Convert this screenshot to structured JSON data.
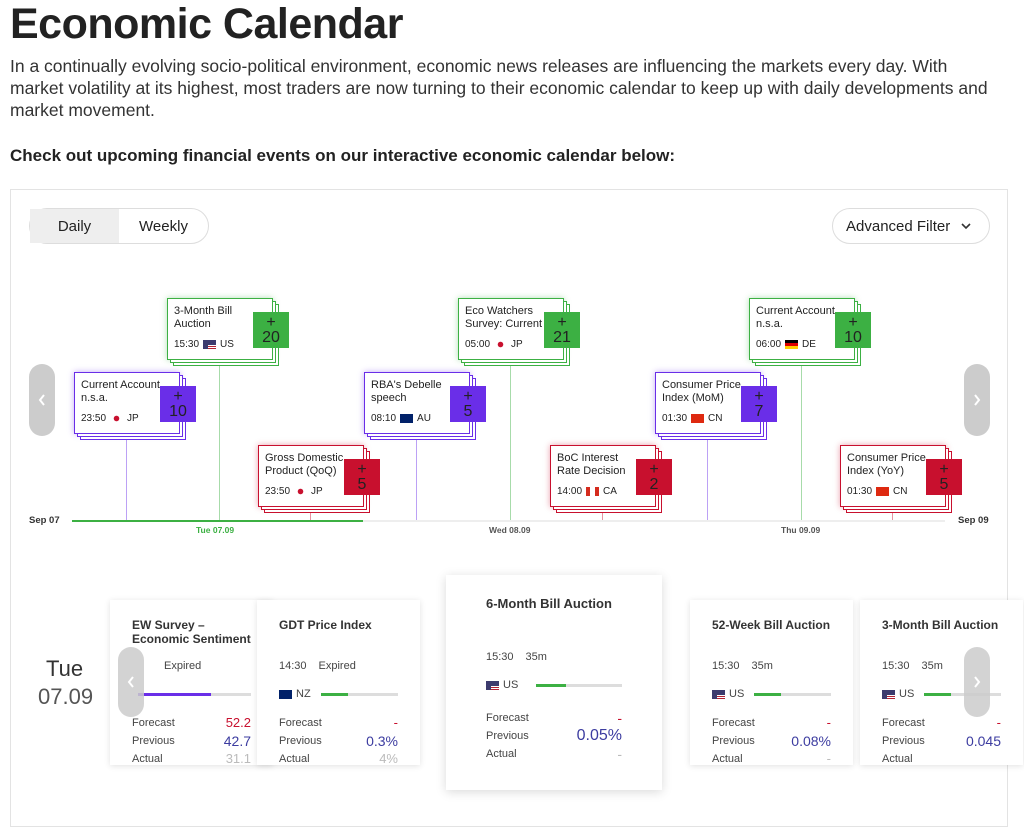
{
  "header": {
    "title": "Economic Calendar",
    "intro": "In a continually evolving socio-political environment, economic news releases are influencing the markets every day. With market volatility at its highest, most traders are now turning to their economic calendar to keep up with daily developments and market movement.",
    "cta": "Check out upcoming financial events on our interactive economic calendar below:"
  },
  "controls": {
    "tabs": [
      "Daily",
      "Weekly"
    ],
    "filter": "Advanced Filter"
  },
  "timeline": {
    "events": [
      {
        "title": "Current Account n.s.a.",
        "time": "23:50",
        "country": "JP",
        "more": "+\n10",
        "color": "#6a2ee8"
      },
      {
        "title": "3-Month Bill Auction",
        "time": "15:30",
        "country": "US",
        "more": "+\n20",
        "color": "#3cb043"
      },
      {
        "title": "Gross Domestic Product (QoQ)",
        "time": "23:50",
        "country": "JP",
        "more": "+\n5",
        "color": "#c8102e"
      },
      {
        "title": "RBA's Debelle speech",
        "time": "08:10",
        "country": "AU",
        "more": "+\n5",
        "color": "#6a2ee8"
      },
      {
        "title": "Eco Watchers Survey: Current",
        "time": "05:00",
        "country": "JP",
        "more": "+\n21",
        "color": "#3cb043"
      },
      {
        "title": "BoC Interest Rate Decision",
        "time": "14:00",
        "country": "CA",
        "more": "+\n2",
        "color": "#c8102e"
      },
      {
        "title": "Consumer Price Index (MoM)",
        "time": "01:30",
        "country": "CN",
        "more": "+\n7",
        "color": "#6a2ee8"
      },
      {
        "title": "Current Account n.s.a.",
        "time": "06:00",
        "country": "DE",
        "more": "+\n10",
        "color": "#3cb043"
      },
      {
        "title": "Consumer Price Index (YoY)",
        "time": "01:30",
        "country": "CN",
        "more": "+\n5",
        "color": "#c8102e"
      }
    ],
    "dates": [
      "Sep 07",
      "Tue 07.09",
      "Wed 08.09",
      "Thu 09.09",
      "Sep 09"
    ]
  },
  "day": {
    "weekday": "Tue",
    "date": "07.09"
  },
  "cards": [
    {
      "title": "EW Survey – Economic Sentiment",
      "status": "Expired",
      "fields": [
        {
          "label": "Forecast",
          "value": "52.2"
        },
        {
          "label": "Previous",
          "value": "42.7"
        },
        {
          "label": "Actual",
          "value": "31.1"
        }
      ]
    },
    {
      "title": "GDT Price Index",
      "time": "14:30",
      "status": "Expired",
      "country": "NZ",
      "fields": [
        {
          "label": "Forecast",
          "value": "-"
        },
        {
          "label": "Previous",
          "value": "0.3%"
        },
        {
          "label": "Actual",
          "value": "4%"
        }
      ]
    },
    {
      "title": "6-Month Bill Auction",
      "time": "15:30",
      "status": "35m",
      "country": "US",
      "fields": [
        {
          "label": "Forecast",
          "value": "-"
        },
        {
          "label": "Previous",
          "value": "0.05%"
        },
        {
          "label": "Actual",
          "value": "-"
        }
      ]
    },
    {
      "title": "52-Week Bill Auction",
      "time": "15:30",
      "status": "35m",
      "country": "US",
      "fields": [
        {
          "label": "Forecast",
          "value": "-"
        },
        {
          "label": "Previous",
          "value": "0.08%"
        },
        {
          "label": "Actual",
          "value": "-"
        }
      ]
    },
    {
      "title": "3-Month Bill Auction",
      "time": "15:30",
      "status": "35m",
      "country": "US",
      "fields": [
        {
          "label": "Forecast",
          "value": "-"
        },
        {
          "label": "Previous",
          "value": "0.045"
        },
        {
          "label": "Actual"
        }
      ]
    }
  ]
}
